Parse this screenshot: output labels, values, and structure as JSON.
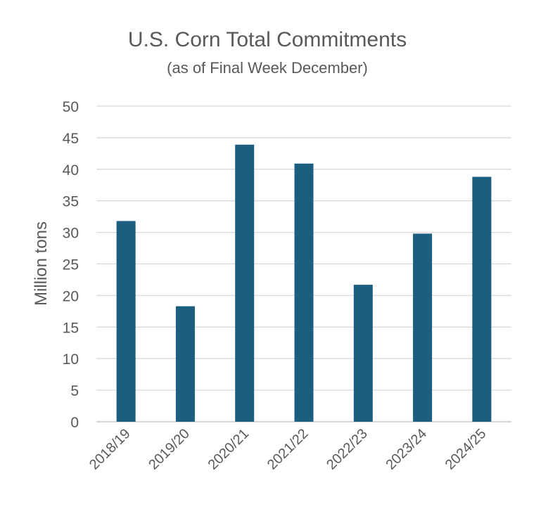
{
  "chart_data": {
    "type": "bar",
    "title": "U.S. Corn Total Commitments",
    "subtitle": "(as of Final Week December)",
    "xlabel": "",
    "ylabel": "Million tons",
    "categories": [
      "2018/19",
      "2019/20",
      "2020/21",
      "2021/22",
      "2022/23",
      "2023/24",
      "2024/25"
    ],
    "values": [
      31.8,
      18.3,
      43.9,
      40.9,
      21.7,
      29.8,
      38.8
    ],
    "ylim": [
      0,
      50
    ],
    "yticks": [
      0,
      5,
      10,
      15,
      20,
      25,
      30,
      35,
      40,
      45,
      50
    ],
    "grid": true,
    "legend": "none",
    "colors": {
      "bar": "#1b5e80",
      "grid": "#d9d9d9",
      "text": "#595959"
    }
  }
}
